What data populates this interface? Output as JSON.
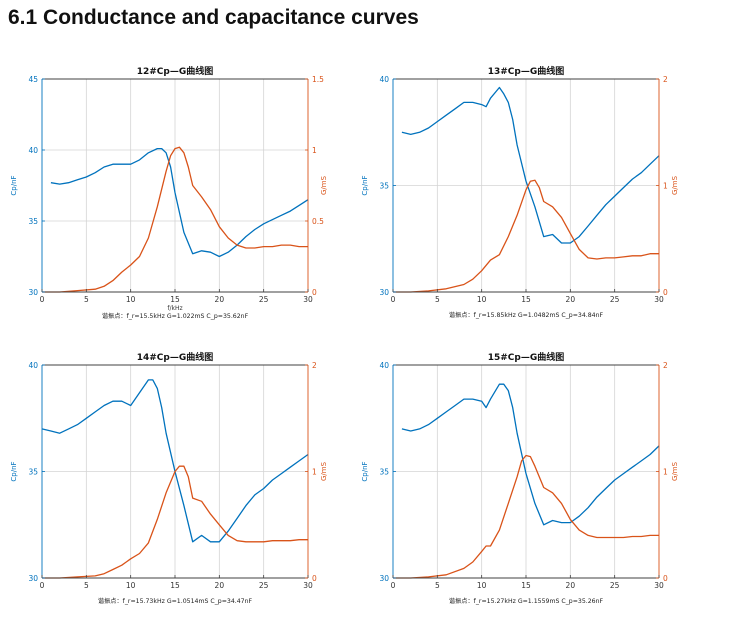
{
  "heading": "6.1 Conductance and capacitance curves",
  "colors": {
    "cp": "#0072BD",
    "g": "#D95319",
    "grid": "#d4d4d4",
    "axis": "#404040"
  },
  "chart_data": [
    {
      "type": "line",
      "title": "12#Cp—G曲线图",
      "xlabel": "f/kHz",
      "ylabel_left": "Cp/nF",
      "ylabel_right": "G/mS",
      "xlim": [
        0,
        30
      ],
      "xticks": [
        0,
        5,
        10,
        15,
        20,
        25,
        30
      ],
      "ylim_left": [
        30,
        45
      ],
      "yticks_left": [
        30,
        35,
        40,
        45
      ],
      "ylim_right": [
        0,
        1.5
      ],
      "yticks_right": [
        0,
        0.5,
        1,
        1.5
      ],
      "caption": "谐振点：f_r=15.5kHz  G=1.022mS  C_p=35.62nF",
      "series": [
        {
          "name": "Cp",
          "axis": "left",
          "x": [
            1,
            2,
            3,
            4,
            5,
            6,
            7,
            8,
            9,
            10,
            11,
            12,
            13,
            13.5,
            14,
            14.5,
            15,
            16,
            17,
            18,
            19,
            20,
            21,
            22,
            23,
            24,
            25,
            26,
            27,
            28,
            29,
            30
          ],
          "y": [
            37.7,
            37.6,
            37.7,
            37.9,
            38.1,
            38.4,
            38.8,
            39.0,
            39.0,
            39.0,
            39.3,
            39.8,
            40.1,
            40.1,
            39.8,
            38.8,
            37.0,
            34.2,
            32.7,
            32.9,
            32.8,
            32.5,
            32.8,
            33.3,
            33.9,
            34.4,
            34.8,
            35.1,
            35.4,
            35.7,
            36.1,
            36.5
          ]
        },
        {
          "name": "G",
          "axis": "right",
          "x": [
            0,
            2,
            4,
            6,
            7,
            8,
            9,
            10,
            11,
            12,
            13,
            14,
            14.5,
            15,
            15.5,
            16,
            16.5,
            17,
            18,
            19,
            20,
            21,
            22,
            23,
            24,
            25,
            26,
            27,
            28,
            29,
            30
          ],
          "y": [
            0.0,
            0.0,
            0.01,
            0.02,
            0.04,
            0.08,
            0.14,
            0.19,
            0.25,
            0.38,
            0.6,
            0.85,
            0.96,
            1.01,
            1.02,
            0.98,
            0.88,
            0.75,
            0.67,
            0.58,
            0.46,
            0.38,
            0.33,
            0.31,
            0.31,
            0.32,
            0.32,
            0.33,
            0.33,
            0.32,
            0.32
          ]
        }
      ]
    },
    {
      "type": "line",
      "title": "13#Cp—G曲线图",
      "xlabel": "",
      "ylabel_left": "Cp/nF",
      "ylabel_right": "G/mS",
      "xlim": [
        0,
        30
      ],
      "xticks": [
        0,
        5,
        10,
        15,
        20,
        25,
        30
      ],
      "ylim_left": [
        30,
        40
      ],
      "yticks_left": [
        30,
        35,
        40
      ],
      "ylim_right": [
        0,
        2
      ],
      "yticks_right": [
        0,
        1,
        2
      ],
      "caption": "谐振点：f_r=15.85kHz  G=1.0482mS  C_p=34.84nF",
      "series": [
        {
          "name": "Cp",
          "axis": "left",
          "x": [
            1,
            2,
            3,
            4,
            5,
            6,
            7,
            8,
            9,
            10,
            10.5,
            11,
            12,
            12.5,
            13,
            13.5,
            14,
            15,
            16,
            17,
            18,
            19,
            20,
            21,
            22,
            23,
            24,
            25,
            26,
            27,
            28,
            29,
            30
          ],
          "y": [
            37.5,
            37.4,
            37.5,
            37.7,
            38.0,
            38.3,
            38.6,
            38.9,
            38.9,
            38.8,
            38.7,
            39.1,
            39.6,
            39.3,
            38.9,
            38.1,
            36.9,
            35.2,
            34.0,
            32.6,
            32.7,
            32.3,
            32.3,
            32.6,
            33.1,
            33.6,
            34.1,
            34.5,
            34.9,
            35.3,
            35.6,
            36.0,
            36.4
          ]
        },
        {
          "name": "G",
          "axis": "right",
          "x": [
            0,
            2,
            4,
            6,
            8,
            9,
            10,
            11,
            12,
            13,
            14,
            15,
            15.5,
            16,
            16.5,
            17,
            18,
            19,
            20,
            21,
            22,
            23,
            24,
            25,
            26,
            27,
            28,
            29,
            30
          ],
          "y": [
            0.0,
            0.0,
            0.01,
            0.03,
            0.07,
            0.12,
            0.2,
            0.3,
            0.35,
            0.52,
            0.72,
            0.96,
            1.04,
            1.05,
            0.98,
            0.85,
            0.8,
            0.7,
            0.55,
            0.4,
            0.32,
            0.31,
            0.32,
            0.32,
            0.33,
            0.34,
            0.34,
            0.36,
            0.36
          ]
        }
      ]
    },
    {
      "type": "line",
      "title": "14#Cp—G曲线图",
      "xlabel": "",
      "ylabel_left": "Cp/nF",
      "ylabel_right": "G/mS",
      "xlim": [
        0,
        30
      ],
      "xticks": [
        0,
        5,
        10,
        15,
        20,
        25,
        30
      ],
      "ylim_left": [
        30,
        40
      ],
      "yticks_left": [
        30,
        35,
        40
      ],
      "ylim_right": [
        0,
        2
      ],
      "yticks_right": [
        0,
        1,
        2
      ],
      "caption": "谐振点：f_r=15.73kHz  G=1.0514mS  C_p=34.47nF",
      "series": [
        {
          "name": "Cp",
          "axis": "left",
          "x": [
            0,
            1,
            2,
            3,
            4,
            5,
            6,
            7,
            8,
            9,
            10,
            11,
            12,
            12.5,
            13,
            13.5,
            14,
            15,
            16,
            17,
            18,
            19,
            20,
            21,
            22,
            23,
            24,
            25,
            26,
            27,
            28,
            29,
            30
          ],
          "y": [
            37.0,
            36.9,
            36.8,
            37.0,
            37.2,
            37.5,
            37.8,
            38.1,
            38.3,
            38.3,
            38.1,
            38.7,
            39.3,
            39.3,
            38.9,
            38.0,
            36.8,
            35.0,
            33.4,
            31.7,
            32.0,
            31.7,
            31.7,
            32.2,
            32.8,
            33.4,
            33.9,
            34.2,
            34.6,
            34.9,
            35.2,
            35.5,
            35.8
          ]
        },
        {
          "name": "G",
          "axis": "right",
          "x": [
            0,
            2,
            4,
            6,
            7,
            8,
            9,
            10,
            11,
            12,
            13,
            14,
            15,
            15.5,
            16,
            16.5,
            17,
            18,
            19,
            20,
            21,
            22,
            23,
            24,
            25,
            26,
            27,
            28,
            29,
            30
          ],
          "y": [
            0.0,
            0.0,
            0.01,
            0.02,
            0.04,
            0.08,
            0.12,
            0.18,
            0.23,
            0.33,
            0.55,
            0.8,
            1.0,
            1.05,
            1.05,
            0.95,
            0.75,
            0.72,
            0.6,
            0.5,
            0.4,
            0.35,
            0.34,
            0.34,
            0.34,
            0.35,
            0.35,
            0.35,
            0.36,
            0.36
          ]
        }
      ]
    },
    {
      "type": "line",
      "title": "15#Cp—G曲线图",
      "xlabel": "",
      "ylabel_left": "Cp/nF",
      "ylabel_right": "G/mS",
      "xlim": [
        0,
        30
      ],
      "xticks": [
        0,
        5,
        10,
        15,
        20,
        25,
        30
      ],
      "ylim_left": [
        30,
        40
      ],
      "yticks_left": [
        30,
        35,
        40
      ],
      "ylim_right": [
        0,
        2
      ],
      "yticks_right": [
        0,
        1,
        2
      ],
      "caption": "谐振点：f_r=15.27kHz  G=1.1559mS  C_p=35.26nF",
      "series": [
        {
          "name": "Cp",
          "axis": "left",
          "x": [
            1,
            2,
            3,
            4,
            5,
            6,
            7,
            8,
            9,
            10,
            10.5,
            11,
            12,
            12.5,
            13,
            13.5,
            14,
            15,
            16,
            17,
            18,
            19,
            20,
            21,
            22,
            23,
            24,
            25,
            26,
            27,
            28,
            29,
            30
          ],
          "y": [
            37.0,
            36.9,
            37.0,
            37.2,
            37.5,
            37.8,
            38.1,
            38.4,
            38.4,
            38.3,
            38.0,
            38.4,
            39.1,
            39.1,
            38.8,
            38.0,
            36.8,
            34.9,
            33.5,
            32.5,
            32.7,
            32.6,
            32.6,
            32.9,
            33.3,
            33.8,
            34.2,
            34.6,
            34.9,
            35.2,
            35.5,
            35.8,
            36.2
          ]
        },
        {
          "name": "G",
          "axis": "right",
          "x": [
            0,
            2,
            4,
            6,
            8,
            9,
            10,
            10.5,
            11,
            12,
            13,
            14,
            14.5,
            15,
            15.5,
            16,
            17,
            18,
            19,
            20,
            21,
            22,
            23,
            24,
            25,
            26,
            27,
            28,
            29,
            30
          ],
          "y": [
            0.0,
            0.0,
            0.01,
            0.03,
            0.09,
            0.15,
            0.25,
            0.3,
            0.3,
            0.45,
            0.7,
            0.95,
            1.1,
            1.15,
            1.14,
            1.05,
            0.85,
            0.8,
            0.7,
            0.55,
            0.45,
            0.4,
            0.38,
            0.38,
            0.38,
            0.38,
            0.39,
            0.39,
            0.4,
            0.4
          ]
        }
      ]
    }
  ]
}
